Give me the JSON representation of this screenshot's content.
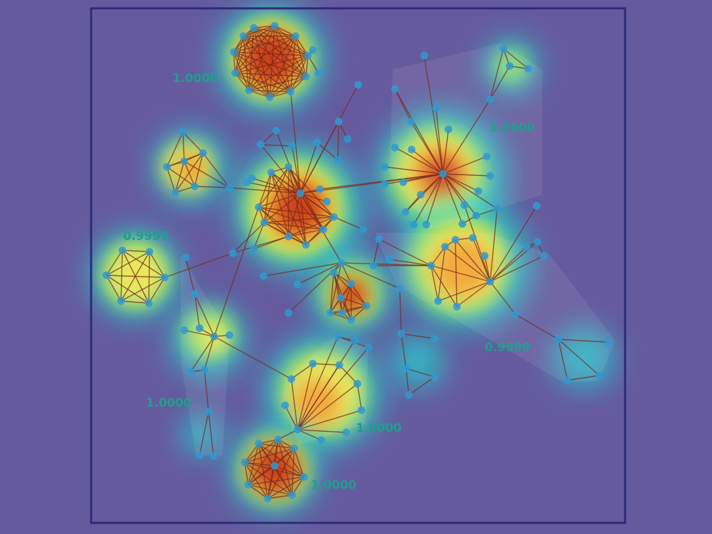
{
  "colors": {
    "background": "#665a9e",
    "frame": "#2c2a78",
    "edge": "#7a2a1c",
    "node": "#2f9ad2",
    "label": "#1f9f8f"
  },
  "heat_levels": [
    {
      "name": "cool",
      "color": "#3f9ad8"
    },
    {
      "name": "mid",
      "color": "#22d0cf"
    },
    {
      "name": "warm-green",
      "color": "#9be06a"
    },
    {
      "name": "warm-yellow",
      "color": "#f7e94a"
    },
    {
      "name": "hot-orange",
      "color": "#f39a2b"
    },
    {
      "name": "hot-red",
      "color": "#c83218"
    }
  ],
  "cluster_labels": [
    "1.0000",
    "1.0000",
    "0.9999",
    "1.0000",
    "0.9999",
    "1.0000",
    "1.0000"
  ]
}
